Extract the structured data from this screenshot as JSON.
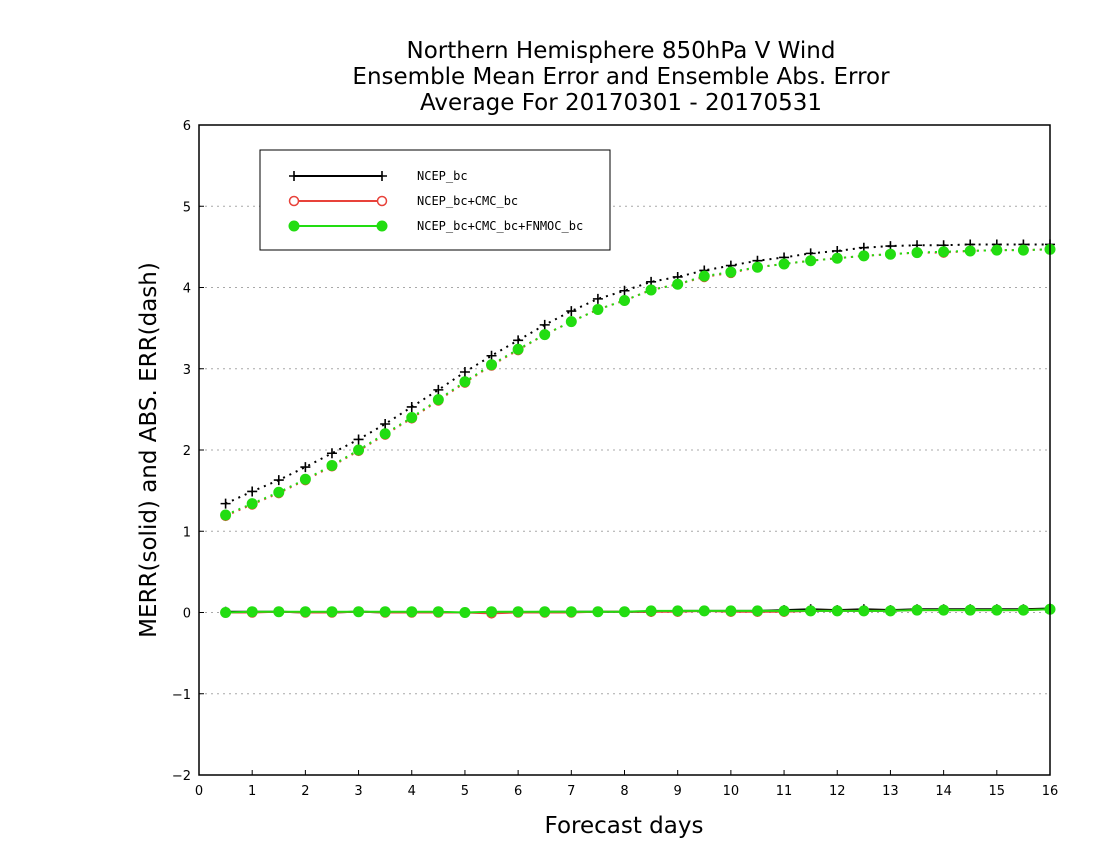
{
  "chart_data": {
    "type": "line",
    "title": [
      "Northern Hemisphere 850hPa V Wind",
      "Ensemble Mean Error and Ensemble Abs. Error",
      "Average For 20170301 - 20170531"
    ],
    "xlabel": "Forecast days",
    "ylabel": "MERR(solid) and ABS. ERR(dash)",
    "xlim": [
      0,
      16
    ],
    "ylim": [
      -2,
      6
    ],
    "xticks": [
      0,
      1,
      2,
      3,
      4,
      5,
      6,
      7,
      8,
      9,
      10,
      11,
      12,
      13,
      14,
      15,
      16
    ],
    "yticks": [
      -2,
      -1,
      0,
      1,
      2,
      3,
      4,
      5,
      6
    ],
    "grid": "horizontal dotted",
    "legend_position": "top-left",
    "x": [
      0.5,
      1,
      1.5,
      2,
      2.5,
      3,
      3.5,
      4,
      4.5,
      5,
      5.5,
      6,
      6.5,
      7,
      7.5,
      8,
      8.5,
      9,
      9.5,
      10,
      10.5,
      11,
      11.5,
      12,
      12.5,
      13,
      13.5,
      14,
      14.5,
      15,
      15.5,
      16
    ],
    "series": [
      {
        "name": "NCEP_bc",
        "color": "#000000",
        "marker": "plus",
        "merr": [
          0.01,
          0.01,
          0.01,
          0.0,
          0.0,
          0.01,
          0.0,
          0.0,
          0.0,
          0.0,
          0.0,
          0.0,
          0.01,
          0.01,
          0.01,
          0.01,
          0.01,
          0.02,
          0.02,
          0.02,
          0.02,
          0.03,
          0.04,
          0.03,
          0.04,
          0.03,
          0.04,
          0.04,
          0.04,
          0.04,
          0.04,
          0.05
        ],
        "abs_err": [
          1.34,
          1.49,
          1.63,
          1.79,
          1.96,
          2.13,
          2.32,
          2.53,
          2.74,
          2.96,
          3.16,
          3.35,
          3.54,
          3.71,
          3.86,
          3.96,
          4.07,
          4.13,
          4.21,
          4.27,
          4.33,
          4.37,
          4.42,
          4.45,
          4.49,
          4.51,
          4.52,
          4.52,
          4.53,
          4.53,
          4.53,
          4.53
        ]
      },
      {
        "name": "NCEP_bc+CMC_bc",
        "color": "#e8423a",
        "marker": "open-circle",
        "merr": [
          0.0,
          0.0,
          0.01,
          0.0,
          0.0,
          0.01,
          0.0,
          0.0,
          0.0,
          0.0,
          -0.01,
          0.0,
          0.0,
          0.0,
          0.01,
          0.01,
          0.01,
          0.01,
          0.02,
          0.01,
          0.01,
          0.01,
          0.02,
          0.02,
          0.02,
          0.02,
          0.03,
          0.03,
          0.03,
          0.03,
          0.03,
          0.04
        ],
        "abs_err": [
          1.19,
          1.33,
          1.47,
          1.63,
          1.8,
          1.99,
          2.19,
          2.39,
          2.61,
          2.83,
          3.04,
          3.23,
          3.42,
          3.58,
          3.73,
          3.84,
          3.97,
          4.04,
          4.13,
          4.18,
          4.25,
          4.29,
          4.33,
          4.36,
          4.39,
          4.41,
          4.43,
          4.43,
          4.45,
          4.46,
          4.46,
          4.47
        ]
      },
      {
        "name": "NCEP_bc+CMC_bc+FNMOC_bc",
        "color": "#22dd11",
        "marker": "filled-circle",
        "merr": [
          0.0,
          0.01,
          0.01,
          0.01,
          0.01,
          0.01,
          0.01,
          0.01,
          0.01,
          0.0,
          0.01,
          0.01,
          0.01,
          0.01,
          0.01,
          0.01,
          0.02,
          0.02,
          0.02,
          0.02,
          0.02,
          0.02,
          0.02,
          0.02,
          0.02,
          0.02,
          0.03,
          0.03,
          0.03,
          0.03,
          0.03,
          0.04
        ],
        "abs_err": [
          1.2,
          1.34,
          1.48,
          1.64,
          1.81,
          2.0,
          2.2,
          2.4,
          2.62,
          2.84,
          3.05,
          3.24,
          3.42,
          3.58,
          3.73,
          3.84,
          3.97,
          4.04,
          4.14,
          4.19,
          4.25,
          4.29,
          4.33,
          4.36,
          4.39,
          4.41,
          4.43,
          4.44,
          4.45,
          4.46,
          4.46,
          4.47
        ]
      }
    ]
  }
}
